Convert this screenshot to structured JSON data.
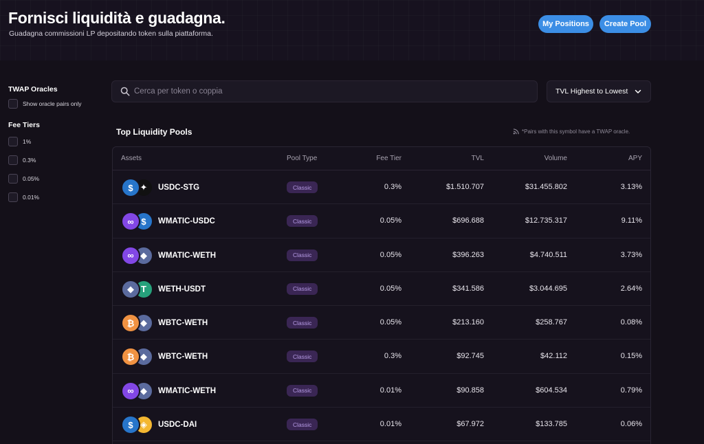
{
  "header": {
    "title": "Fornisci liquidità e guadagna.",
    "subtitle": "Guadagna commissioni LP depositando token sulla piattaforma.",
    "my_positions_label": "My Positions",
    "create_pool_label": "Create Pool"
  },
  "sidebar": {
    "twap_heading": "TWAP Oracles",
    "twap_option": "Show oracle pairs only",
    "fee_heading": "Fee Tiers",
    "fee_options": [
      "1%",
      "0.3%",
      "0.05%",
      "0.01%"
    ]
  },
  "search": {
    "placeholder": "Cerca per token o coppia",
    "value": ""
  },
  "sort": {
    "selected": "TVL Highest to Lowest"
  },
  "pools": {
    "title": "Top Liquidity Pools",
    "oracle_note": "*Pairs with this symbol have a TWAP oracle.",
    "columns": [
      "Assets",
      "Pool Type",
      "Fee Tier",
      "TVL",
      "Volume",
      "APY"
    ],
    "rows": [
      {
        "pair": "USDC-STG",
        "type": "Classic",
        "fee": "0.3%",
        "tvl": "$1.510.707",
        "volume": "$31.455.802",
        "apy": "3.13%",
        "tokens": [
          "usdc",
          "stg"
        ]
      },
      {
        "pair": "WMATIC-USDC",
        "type": "Classic",
        "fee": "0.05%",
        "tvl": "$696.688",
        "volume": "$12.735.317",
        "apy": "9.11%",
        "tokens": [
          "matic",
          "usdc"
        ]
      },
      {
        "pair": "WMATIC-WETH",
        "type": "Classic",
        "fee": "0.05%",
        "tvl": "$396.263",
        "volume": "$4.740.511",
        "apy": "3.73%",
        "tokens": [
          "matic",
          "eth"
        ]
      },
      {
        "pair": "WETH-USDT",
        "type": "Classic",
        "fee": "0.05%",
        "tvl": "$341.586",
        "volume": "$3.044.695",
        "apy": "2.64%",
        "tokens": [
          "eth",
          "usdt"
        ]
      },
      {
        "pair": "WBTC-WETH",
        "type": "Classic",
        "fee": "0.05%",
        "tvl": "$213.160",
        "volume": "$258.767",
        "apy": "0.08%",
        "tokens": [
          "btc",
          "eth"
        ]
      },
      {
        "pair": "WBTC-WETH",
        "type": "Classic",
        "fee": "0.3%",
        "tvl": "$92.745",
        "volume": "$42.112",
        "apy": "0.15%",
        "tokens": [
          "btc",
          "eth"
        ]
      },
      {
        "pair": "WMATIC-WETH",
        "type": "Classic",
        "fee": "0.01%",
        "tvl": "$90.858",
        "volume": "$604.534",
        "apy": "0.79%",
        "tokens": [
          "matic",
          "eth"
        ]
      },
      {
        "pair": "USDC-DAI",
        "type": "Classic",
        "fee": "0.01%",
        "tvl": "$67.972",
        "volume": "$133.785",
        "apy": "0.06%",
        "tokens": [
          "usdc",
          "dai"
        ]
      }
    ]
  },
  "colors": {
    "accent": "#3c8ee5",
    "badge_bg": "#3a2654",
    "badge_text": "#b79ce6",
    "background": "#141019"
  },
  "icons": {
    "usdc": {
      "name": "usdc-token-icon",
      "bg": "#2775ca",
      "glyph": "$"
    },
    "stg": {
      "name": "stg-token-icon",
      "bg": "#111111",
      "glyph": "✦"
    },
    "matic": {
      "name": "matic-token-icon",
      "bg": "#8247e5",
      "glyph": "∞"
    },
    "eth": {
      "name": "eth-token-icon",
      "bg": "#5b6b9e",
      "glyph": "◆"
    },
    "usdt": {
      "name": "usdt-token-icon",
      "bg": "#26a17b",
      "glyph": "T"
    },
    "btc": {
      "name": "btc-token-icon",
      "bg": "#f09242",
      "glyph": "₿"
    },
    "dai": {
      "name": "dai-token-icon",
      "bg": "#f4b731",
      "glyph": "◈"
    }
  }
}
